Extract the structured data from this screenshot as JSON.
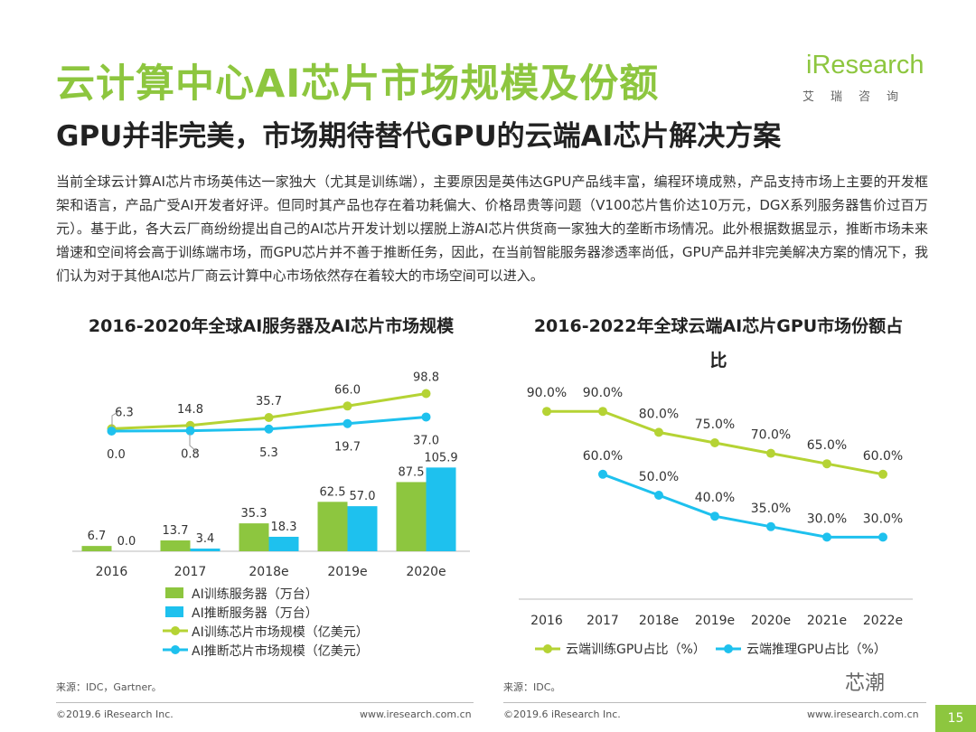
{
  "header": {
    "title": "云计算中心AI芯片市场规模及份额",
    "subtitle": "GPU并非完美，市场期待替代GPU的云端AI芯片解决方案",
    "brand_name": "iResearch",
    "brand_cn": "艾瑞咨询"
  },
  "intro_text": "当前全球云计算AI芯片市场英伟达一家独大（尤其是训练端），主要原因是英伟达GPU产品线丰富，编程环境成熟，产品支持市场上主要的开发框架和语言，产品广受AI开发者好评。但同时其产品也存在着功耗偏大、价格昂贵等问题（V100芯片售价达10万元，DGX系列服务器售价过百万元）。基于此，各大云厂商纷纷提出自己的AI芯片开发计划以摆脱上游AI芯片供货商一家独大的垄断市场情况。此外根据数据显示，推断市场未来增速和空间将会高于训练端市场，而GPU芯片并不善于推断任务，因此，在当前智能服务器渗透率尚低，GPU产品并非完美解决方案的情况下，我们认为对于其他AI芯片厂商云计算中心市场依然存在着较大的市场空间可以进入。",
  "chart_data": [
    {
      "type": "bar",
      "title": "2016-2020年全球AI服务器及AI芯片市场规模",
      "categories": [
        "2016",
        "2017",
        "2018e",
        "2019e",
        "2020e"
      ],
      "series": [
        {
          "name": "AI训练服务器（万台）",
          "kind": "bar",
          "color": "#8dc63f",
          "values": [
            6.7,
            13.7,
            35.3,
            62.5,
            87.5
          ]
        },
        {
          "name": "AI推断服务器（万台）",
          "kind": "bar",
          "color": "#1ec1ee",
          "values": [
            0.0,
            3.4,
            18.3,
            57.0,
            105.9
          ]
        },
        {
          "name": "AI训练芯片市场规模（亿美元）",
          "kind": "line",
          "color": "#b5d334",
          "values": [
            6.3,
            14.8,
            35.7,
            66.0,
            98.8
          ]
        },
        {
          "name": "AI推断芯片市场规模（亿美元）",
          "kind": "line",
          "color": "#1ec1ee",
          "values": [
            0.0,
            0.8,
            5.3,
            19.7,
            37.0
          ]
        }
      ],
      "value_labels": {
        "bar_train": [
          "6.7",
          "13.7",
          "35.3",
          "62.5",
          "87.5"
        ],
        "bar_infer": [
          "0.0",
          "3.4",
          "18.3",
          "57.0",
          "105.9"
        ],
        "line_train": [
          "6.3",
          "14.8",
          "35.7",
          "66.0",
          "98.8"
        ],
        "line_infer": [
          "0.0",
          "0.8",
          "5.3",
          "19.7",
          "37.0"
        ]
      },
      "legend_labels": [
        "AI训练服务器（万台）",
        "AI推断服务器（万台）",
        "AI训练芯片市场规模（亿美元）",
        "AI推断芯片市场规模（亿美元）"
      ],
      "legend_position": "bottom"
    },
    {
      "type": "line",
      "title": "2016-2022年全球云端AI芯片GPU市场份额占比",
      "categories": [
        "2016",
        "2017",
        "2018e",
        "2019e",
        "2020e",
        "2021e",
        "2022e"
      ],
      "series": [
        {
          "name": "云端训练GPU占比（%）",
          "color": "#b5d334",
          "values": [
            90.0,
            90.0,
            80.0,
            75.0,
            70.0,
            65.0,
            60.0
          ]
        },
        {
          "name": "云端推理GPU占比（%）",
          "color": "#1ec1ee",
          "values": [
            null,
            60.0,
            50.0,
            40.0,
            35.0,
            30.0,
            30.0
          ]
        }
      ],
      "value_labels": {
        "train": [
          "90.0%",
          "90.0%",
          "80.0%",
          "75.0%",
          "70.0%",
          "65.0%",
          "60.0%"
        ],
        "infer": [
          "",
          "60.0%",
          "50.0%",
          "40.0%",
          "35.0%",
          "30.0%",
          "30.0%"
        ]
      },
      "legend_labels": [
        "云端训练GPU占比（%）",
        "云端推理GPU占比（%）"
      ],
      "legend_position": "bottom"
    }
  ],
  "sources": {
    "left": "来源：IDC，Gartner。",
    "right": "来源：IDC。"
  },
  "footer": {
    "copyright_left": "©2019.6 iResearch Inc.",
    "url_left": "www.iresearch.com.cn",
    "copyright_right": "©2019.6 iResearch Inc.",
    "url_right": "www.iresearch.com.cn",
    "page_number": "15",
    "watermark": "芯潮"
  }
}
